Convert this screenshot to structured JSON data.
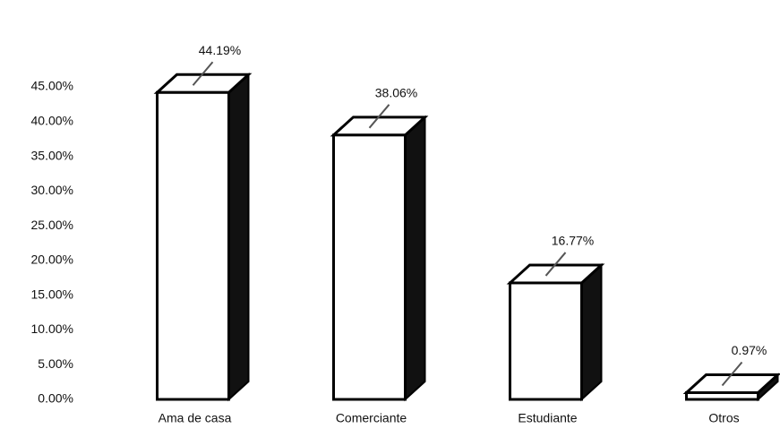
{
  "chart_data": {
    "type": "bar3d",
    "categories": [
      "Ama de casa",
      "Comerciante",
      "Estudiante",
      "Otros"
    ],
    "values": [
      44.19,
      38.06,
      16.77,
      0.97
    ],
    "value_labels": [
      "44.19%",
      "38.06%",
      "16.77%",
      "0.97%"
    ],
    "color": "#ffffff",
    "side_color": "#111111",
    "ylim": [
      0,
      45
    ],
    "yticks": [
      {
        "value": 0,
        "label": "0.00%"
      },
      {
        "value": 5,
        "label": "5.00%"
      },
      {
        "value": 10,
        "label": "10.00%"
      },
      {
        "value": 15,
        "label": "15.00%"
      },
      {
        "value": 20,
        "label": "20.00%"
      },
      {
        "value": 25,
        "label": "25.00%"
      },
      {
        "value": 30,
        "label": "30.00%"
      },
      {
        "value": 35,
        "label": "35.00%"
      },
      {
        "value": 40,
        "label": "40.00%"
      },
      {
        "value": 45,
        "label": "45.00%"
      }
    ],
    "grid": false
  }
}
